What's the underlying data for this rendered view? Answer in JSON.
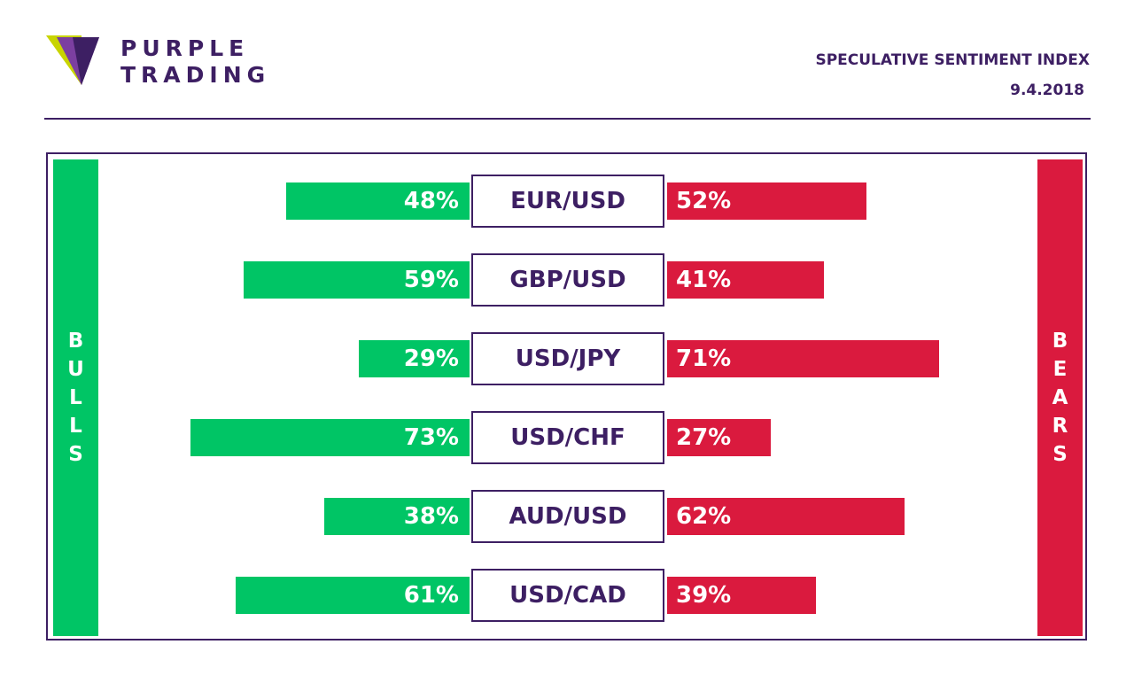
{
  "brand": {
    "line1": "PURPLE",
    "line2": "TRADING",
    "logo_colors": [
      "#c8d400",
      "#7b3fa0",
      "#3d1f63"
    ]
  },
  "header": {
    "title": "SPECULATIVE SENTIMENT INDEX",
    "date": "9.4.2018"
  },
  "colors": {
    "bull": "#00c565",
    "bear": "#da1a3e",
    "purple": "#3d1f63"
  },
  "sides": {
    "bulls": [
      "B",
      "U",
      "L",
      "L",
      "S"
    ],
    "bears": [
      "B",
      "E",
      "A",
      "R",
      "S"
    ]
  },
  "chart_data": {
    "type": "bar",
    "categories": [
      "EUR/USD",
      "GBP/USD",
      "USD/JPY",
      "USD/CHF",
      "AUD/USD",
      "USD/CAD"
    ],
    "series": [
      {
        "name": "BULLS",
        "values": [
          48,
          59,
          29,
          73,
          38,
          61
        ],
        "labels": [
          "48%",
          "59%",
          "29%",
          "73%",
          "38%",
          "61%"
        ]
      },
      {
        "name": "BEARS",
        "values": [
          52,
          41,
          71,
          27,
          62,
          39
        ],
        "labels": [
          "52%",
          "41%",
          "71%",
          "27%",
          "62%",
          "39%"
        ]
      }
    ]
  }
}
